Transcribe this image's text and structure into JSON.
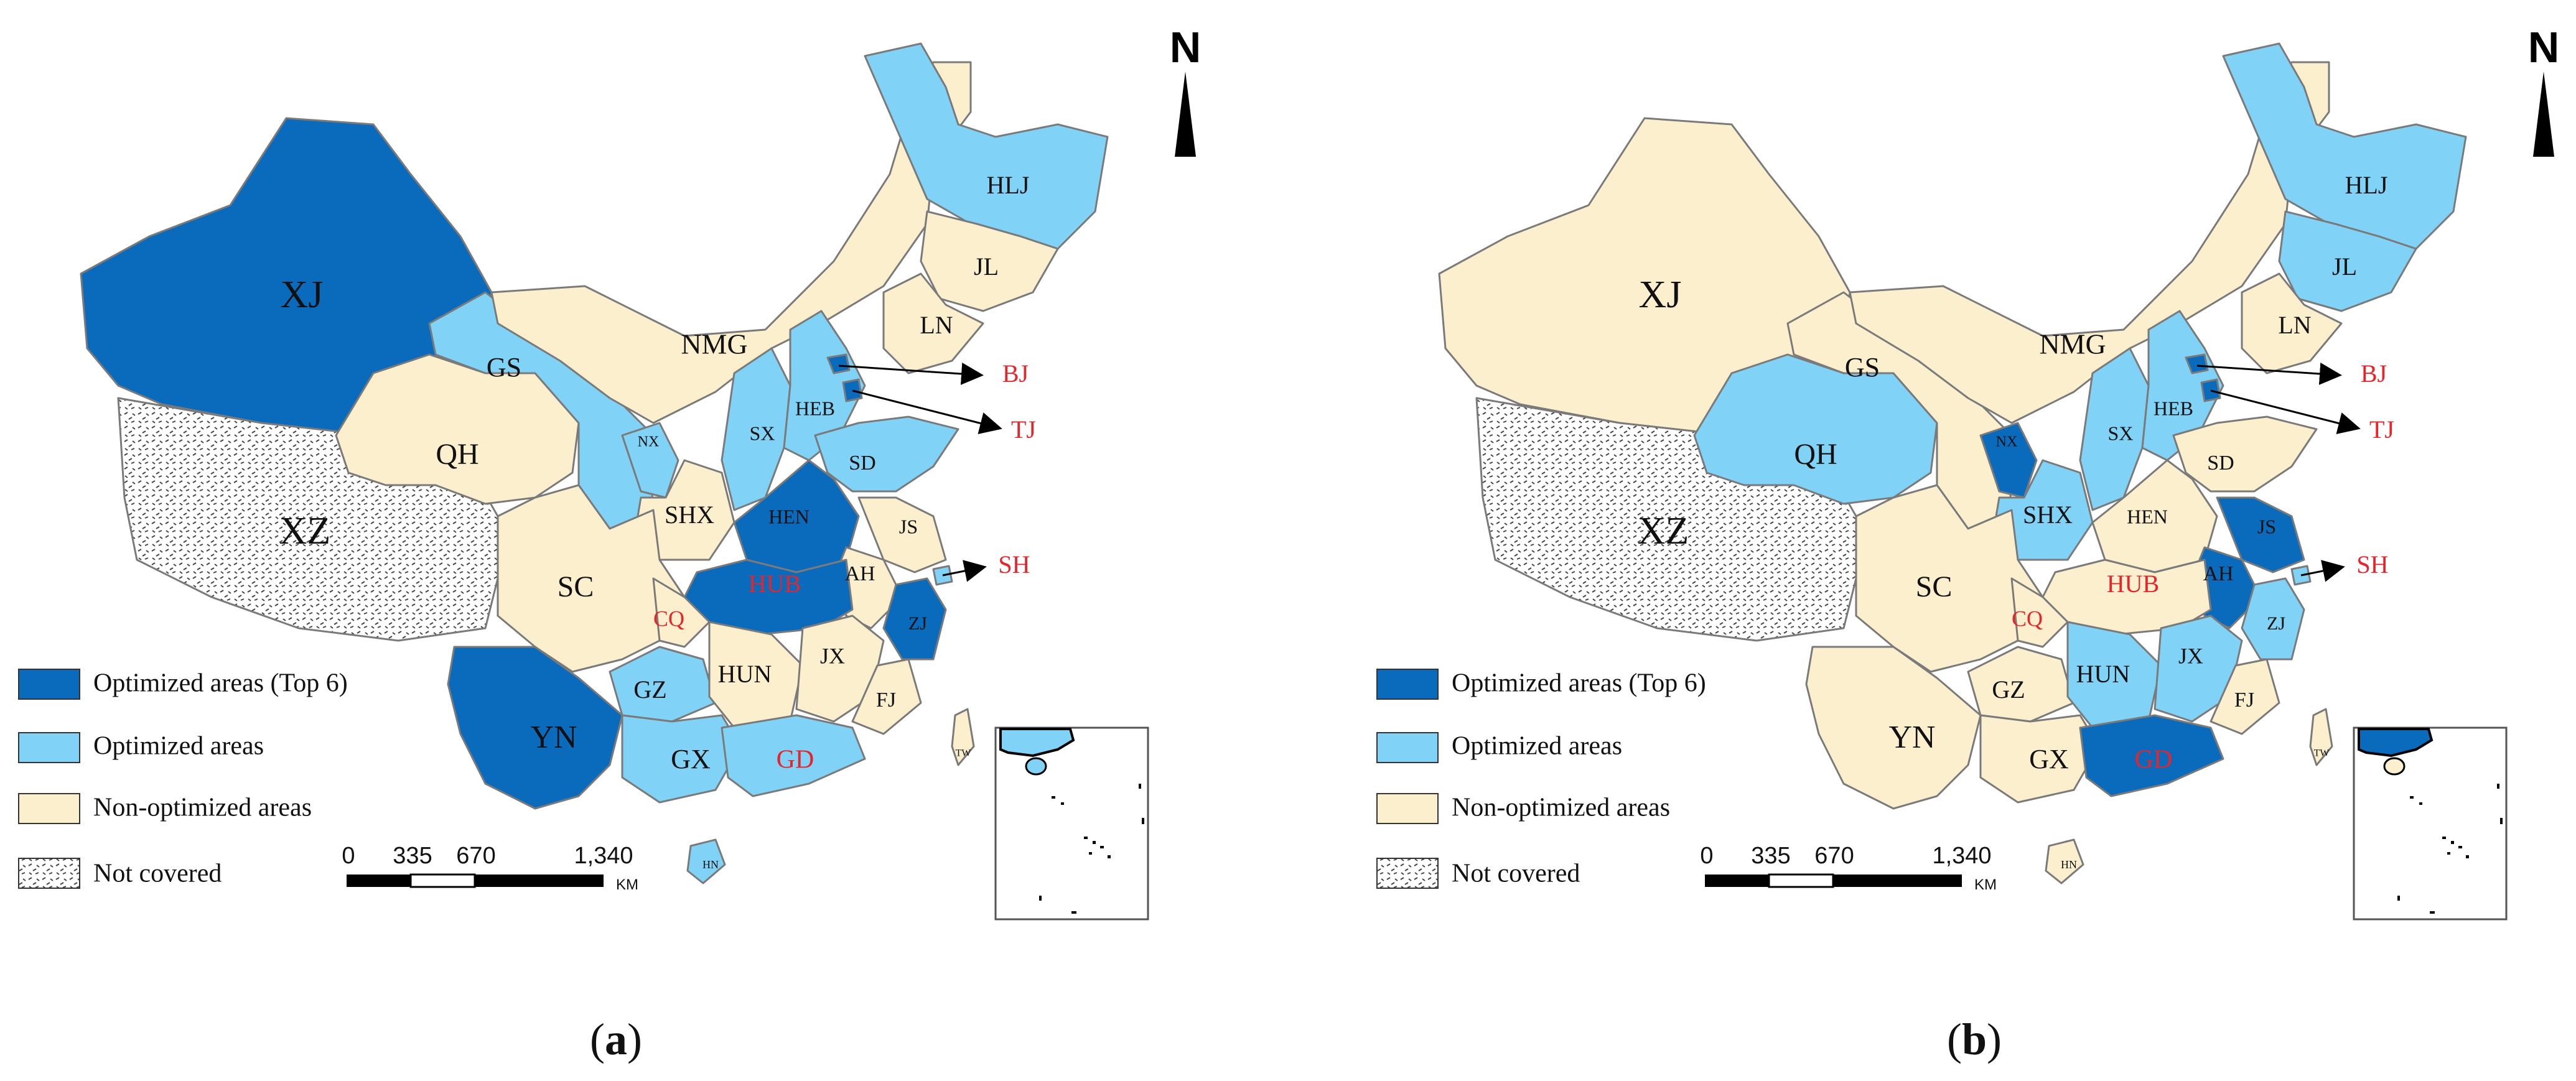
{
  "colors": {
    "top6": "#0a6bbd",
    "optimized": "#80d2f6",
    "non_optimized": "#fcefcd",
    "not_covered": "#ffffff",
    "red_label": "#e8242b"
  },
  "legend": {
    "top6": "Optimized areas (Top 6)",
    "optimized": "Optimized areas",
    "non_optimized": "Non-optimized areas",
    "not_covered": "Not covered"
  },
  "scale": {
    "t0": "0",
    "t1": "335",
    "t2": "670",
    "t3": "1,340",
    "unit": "KM"
  },
  "north_label": "N",
  "red_labels": [
    "BJ",
    "TJ",
    "SH",
    "HUB",
    "CQ",
    "GD"
  ],
  "panels": [
    {
      "caption_open": "(",
      "caption_letter": "a",
      "caption_close": ")",
      "categories": {
        "XJ": "top6",
        "XZ": "not_covered",
        "QH": "non_optimized",
        "GS": "optimized",
        "NMG": "non_optimized",
        "HLJ": "optimized",
        "JL": "non_optimized",
        "LN": "non_optimized",
        "NX": "optimized",
        "SHX": "non_optimized",
        "SX": "optimized",
        "HEB": "optimized",
        "BJ": "top6",
        "TJ": "top6",
        "SD": "optimized",
        "HEN": "top6",
        "JS": "non_optimized",
        "AH": "non_optimized",
        "HUB": "top6",
        "SC": "non_optimized",
        "CQ": "non_optimized",
        "ZJ": "top6",
        "SH": "optimized",
        "GZ": "optimized",
        "HUN": "non_optimized",
        "JX": "non_optimized",
        "FJ": "non_optimized",
        "YN": "top6",
        "GX": "optimized",
        "GD": "optimized",
        "HN": "optimized",
        "TW": "non_optimized"
      }
    },
    {
      "caption_open": "(",
      "caption_letter": "b",
      "caption_close": ")",
      "categories": {
        "XJ": "non_optimized",
        "XZ": "not_covered",
        "QH": "optimized",
        "GS": "non_optimized",
        "NMG": "non_optimized",
        "HLJ": "optimized",
        "JL": "optimized",
        "LN": "non_optimized",
        "NX": "top6",
        "SHX": "optimized",
        "SX": "optimized",
        "HEB": "optimized",
        "BJ": "top6",
        "TJ": "top6",
        "SD": "non_optimized",
        "HEN": "non_optimized",
        "JS": "top6",
        "AH": "top6",
        "HUB": "non_optimized",
        "SC": "non_optimized",
        "CQ": "non_optimized",
        "ZJ": "optimized",
        "SH": "optimized",
        "GZ": "non_optimized",
        "HUN": "optimized",
        "JX": "optimized",
        "FJ": "non_optimized",
        "YN": "non_optimized",
        "GX": "non_optimized",
        "GD": "top6",
        "HN": "non_optimized",
        "TW": "non_optimized"
      }
    }
  ]
}
